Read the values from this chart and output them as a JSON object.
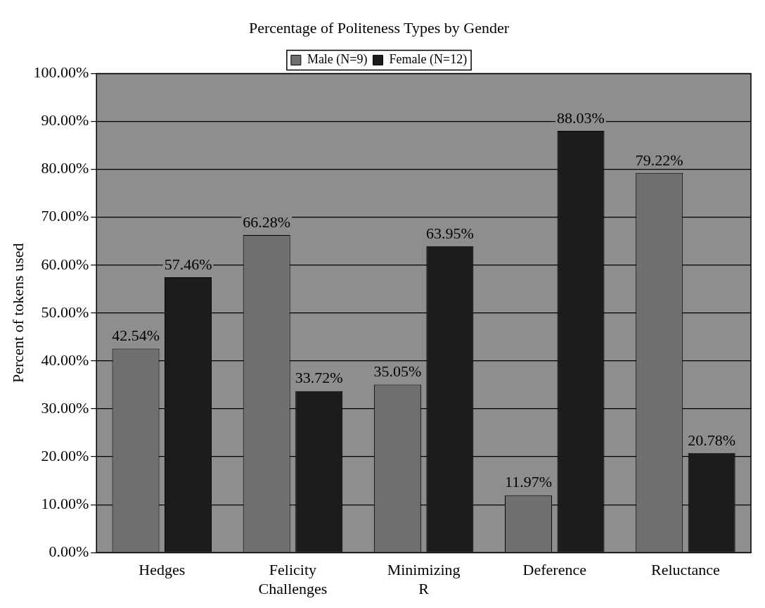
{
  "chart_data": {
    "type": "bar",
    "title": "Percentage of Politeness Types by Gender",
    "ylabel": "Percent of tokens used",
    "categories": [
      "Hedges",
      "Felicity Challenges",
      "Minimizing R",
      "Deference",
      "Reluctance"
    ],
    "series": [
      {
        "name": "Male (N=9)",
        "color": "#6f6f6f",
        "values": [
          42.54,
          66.28,
          35.05,
          11.97,
          79.22
        ],
        "value_labels": [
          "42.54%",
          "66.28%",
          "35.05%",
          "11.97%",
          "79.22%"
        ]
      },
      {
        "name": "Female (N=12)",
        "color": "#1c1c1c",
        "values": [
          57.46,
          33.72,
          63.95,
          88.03,
          20.78
        ],
        "value_labels": [
          "57.46%",
          "33.72%",
          "63.95%",
          "88.03%",
          "20.78%"
        ]
      }
    ],
    "ylim": [
      0,
      100
    ],
    "yticks": [
      {
        "value": 0,
        "label": "0.00%"
      },
      {
        "value": 10,
        "label": "10.00%"
      },
      {
        "value": 20,
        "label": "20.00%"
      },
      {
        "value": 30,
        "label": "30.00%"
      },
      {
        "value": 40,
        "label": "40.00%"
      },
      {
        "value": 50,
        "label": "50.00%"
      },
      {
        "value": 60,
        "label": "60.00%"
      },
      {
        "value": 70,
        "label": "70.00%"
      },
      {
        "value": 80,
        "label": "80.00%"
      },
      {
        "value": 90,
        "label": "90.00%"
      },
      {
        "value": 100,
        "label": "100.00%"
      }
    ],
    "grid": "y",
    "legend": "top"
  }
}
